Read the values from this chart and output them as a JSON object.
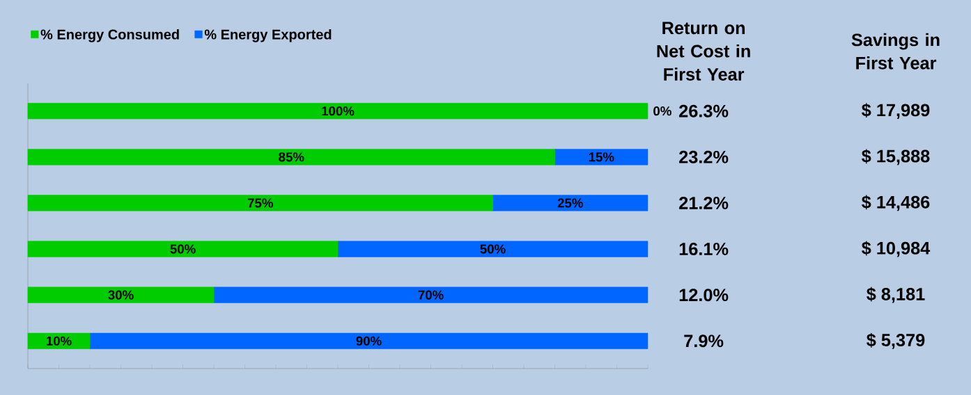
{
  "chart_data": {
    "type": "bar",
    "orientation": "horizontal",
    "stacked": true,
    "categories": [
      null,
      null,
      null,
      null,
      null,
      null
    ],
    "series": [
      {
        "name": "% Energy Consumed",
        "color": "#00cc00",
        "values": [
          100,
          85,
          75,
          50,
          30,
          10
        ],
        "value_labels": [
          "100%",
          "85%",
          "75%",
          "50%",
          "30%",
          "10%"
        ]
      },
      {
        "name": "% Energy Exported",
        "color": "#0066ff",
        "values": [
          0,
          15,
          25,
          50,
          70,
          90
        ],
        "value_labels": [
          "0%",
          "15%",
          "25%",
          "50%",
          "70%",
          "90%"
        ]
      }
    ],
    "xlim": [
      0,
      100
    ],
    "tick_labels": false,
    "legend": "top left",
    "annotations": [
      "Return on Net Cost in First Year",
      "Savings in First Year",
      "26.3%",
      "$ 17,989",
      "23.2%",
      "$ 15,888",
      "21.2%",
      "$ 14,486",
      "16.1%",
      "$ 10,984",
      "12.0%",
      "$ 8,181",
      "7.9%",
      "$ 5,379"
    ]
  }
}
